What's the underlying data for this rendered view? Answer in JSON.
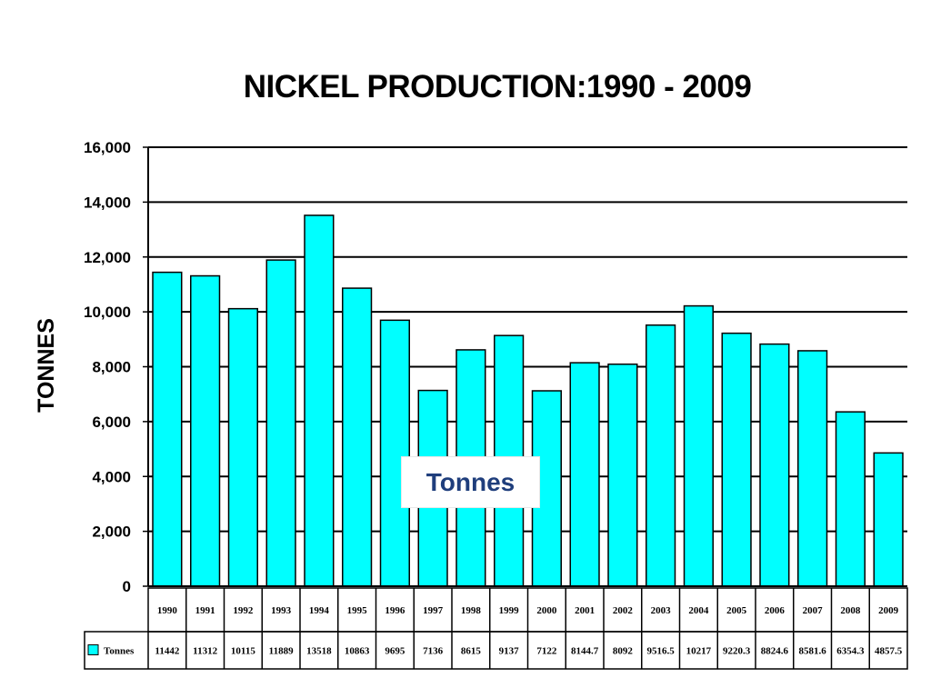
{
  "chart_data": {
    "type": "bar",
    "title": "NICKEL PRODUCTION:1990 - 2009",
    "ylabel": "TONNES",
    "xlabel": "",
    "ylim": [
      0,
      16000
    ],
    "yticks": [
      0,
      2000,
      4000,
      6000,
      8000,
      10000,
      12000,
      14000,
      16000
    ],
    "ytick_labels": [
      "0",
      "2,000",
      "4,000",
      "6,000",
      "8,000",
      "10,000",
      "12,000",
      "14,000",
      "16,000"
    ],
    "grid": true,
    "categories": [
      "1990",
      "1991",
      "1992",
      "1993",
      "1994",
      "1995",
      "1996",
      "1997",
      "1998",
      "1999",
      "2000",
      "2001",
      "2002",
      "2003",
      "2004",
      "2005",
      "2006",
      "2007",
      "2008",
      "2009"
    ],
    "series": [
      {
        "name": "Tonnes",
        "color": "#00ffff",
        "values": [
          11442,
          11312,
          10115,
          11889,
          13518,
          10863,
          9695,
          7136,
          8615,
          9137,
          7122,
          8144.7,
          8092,
          9516.5,
          10217,
          9220.3,
          8824.6,
          8581.6,
          6354.3,
          4857.5
        ],
        "value_labels": [
          "11442",
          "11312",
          "10115",
          "11889",
          "13518",
          "10863",
          "9695",
          "7136",
          "8615",
          "9137",
          "7122",
          "8144.7",
          "8092",
          "9516.5",
          "10217",
          "9220.3",
          "8824.6",
          "8581.6",
          "6354.3",
          "4857.5"
        ]
      }
    ],
    "legend_box_text": "Tonnes",
    "data_table": true
  }
}
